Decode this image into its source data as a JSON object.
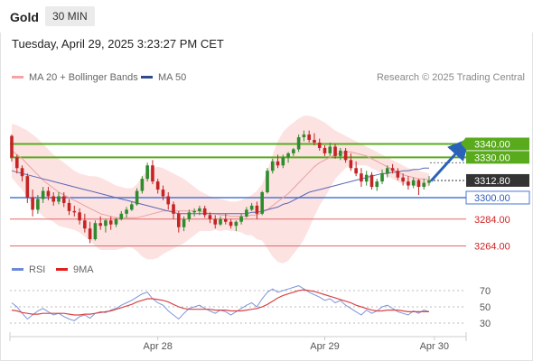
{
  "header": {
    "symbol": "Gold",
    "timeframe": "30 MIN",
    "timestamp": "Tuesday, April 29, 2025 3:23:27 PM CET"
  },
  "legend": {
    "bollinger_label": "MA 20 + Bollinger Bands",
    "ma50_label": "MA 50",
    "attribution": "Research © 2025 Trading Central",
    "rsi_label": "RSI",
    "rsi_ma_label": "9MA"
  },
  "colors": {
    "bullish": "#2e8b2e",
    "bearish": "#c42424",
    "bollinger_fill": "#fde2e2",
    "ma20": "#e8a0a0",
    "ma50": "#5a67b5",
    "key_level": "#5aaa1e",
    "support": "#4a78d6",
    "lower_support": "#e06a6a",
    "rsi": "#7d95d8",
    "rsi_ma": "#d94545",
    "arrow": "#2a62b8"
  },
  "chart_data": [
    {
      "type": "candlestick",
      "title": "Gold 30 MIN",
      "x_ticks": [
        "Apr 28",
        "Apr 29",
        "Apr 30"
      ],
      "ylim": [
        3245,
        3360
      ],
      "levels": [
        {
          "value": 3340.0,
          "label": "3340.00",
          "kind": "resistance"
        },
        {
          "value": 3330.0,
          "label": "3330.00",
          "kind": "resistance"
        },
        {
          "value": 3312.8,
          "label": "3312.80",
          "kind": "last_price"
        },
        {
          "value": 3300.0,
          "label": "3300.00",
          "kind": "pivot"
        },
        {
          "value": 3284.0,
          "label": "3284.00",
          "kind": "support"
        },
        {
          "value": 3264.0,
          "label": "3264.00",
          "kind": "support"
        }
      ],
      "forecast": {
        "from": 3311,
        "to": 3341
      },
      "ohlc": [
        [
          3346,
          3347,
          3327,
          3330
        ],
        [
          3330,
          3332,
          3318,
          3322
        ],
        [
          3322,
          3324,
          3312,
          3316
        ],
        [
          3316,
          3318,
          3296,
          3300
        ],
        [
          3300,
          3306,
          3286,
          3291
        ],
        [
          3291,
          3302,
          3288,
          3299
        ],
        [
          3299,
          3308,
          3296,
          3305
        ],
        [
          3305,
          3308,
          3298,
          3301
        ],
        [
          3301,
          3304,
          3294,
          3297
        ],
        [
          3297,
          3304,
          3295,
          3301
        ],
        [
          3301,
          3304,
          3293,
          3296
        ],
        [
          3296,
          3299,
          3287,
          3290
        ],
        [
          3290,
          3294,
          3286,
          3289
        ],
        [
          3289,
          3292,
          3280,
          3283
        ],
        [
          3283,
          3288,
          3274,
          3277
        ],
        [
          3277,
          3282,
          3266,
          3269
        ],
        [
          3269,
          3283,
          3268,
          3281
        ],
        [
          3281,
          3286,
          3276,
          3279
        ],
        [
          3279,
          3284,
          3274,
          3283
        ],
        [
          3283,
          3286,
          3276,
          3280
        ],
        [
          3280,
          3285,
          3278,
          3284
        ],
        [
          3284,
          3290,
          3283,
          3288
        ],
        [
          3288,
          3293,
          3285,
          3291
        ],
        [
          3291,
          3297,
          3290,
          3295
        ],
        [
          3295,
          3307,
          3294,
          3305
        ],
        [
          3305,
          3316,
          3303,
          3314
        ],
        [
          3314,
          3326,
          3312,
          3324
        ],
        [
          3324,
          3328,
          3310,
          3312
        ],
        [
          3312,
          3314,
          3303,
          3306
        ],
        [
          3306,
          3309,
          3298,
          3301
        ],
        [
          3301,
          3304,
          3291,
          3295
        ],
        [
          3295,
          3297,
          3284,
          3288
        ],
        [
          3288,
          3290,
          3274,
          3278
        ],
        [
          3278,
          3286,
          3275,
          3284
        ],
        [
          3284,
          3291,
          3282,
          3289
        ],
        [
          3289,
          3292,
          3286,
          3290
        ],
        [
          3290,
          3294,
          3287,
          3292
        ],
        [
          3292,
          3294,
          3285,
          3287
        ],
        [
          3287,
          3289,
          3281,
          3284
        ],
        [
          3284,
          3287,
          3277,
          3280
        ],
        [
          3280,
          3286,
          3279,
          3284
        ],
        [
          3284,
          3288,
          3280,
          3282
        ],
        [
          3282,
          3284,
          3277,
          3279
        ],
        [
          3279,
          3283,
          3275,
          3282
        ],
        [
          3282,
          3288,
          3280,
          3286
        ],
        [
          3286,
          3293,
          3285,
          3291
        ],
        [
          3291,
          3296,
          3290,
          3294
        ],
        [
          3294,
          3297,
          3284,
          3288
        ],
        [
          3288,
          3305,
          3287,
          3304
        ],
        [
          3304,
          3322,
          3303,
          3320
        ],
        [
          3320,
          3329,
          3318,
          3327
        ],
        [
          3327,
          3332,
          3322,
          3324
        ],
        [
          3324,
          3332,
          3322,
          3330
        ],
        [
          3330,
          3334,
          3326,
          3333
        ],
        [
          3333,
          3337,
          3331,
          3336
        ],
        [
          3336,
          3347,
          3334,
          3345
        ],
        [
          3345,
          3350,
          3342,
          3347
        ],
        [
          3347,
          3350,
          3341,
          3343
        ],
        [
          3343,
          3348,
          3339,
          3341
        ],
        [
          3341,
          3344,
          3335,
          3337
        ],
        [
          3337,
          3339,
          3331,
          3333
        ],
        [
          3333,
          3341,
          3331,
          3338
        ],
        [
          3338,
          3340,
          3329,
          3331
        ],
        [
          3331,
          3337,
          3328,
          3335
        ],
        [
          3335,
          3337,
          3326,
          3328
        ],
        [
          3328,
          3333,
          3320,
          3322
        ],
        [
          3322,
          3327,
          3316,
          3318
        ],
        [
          3318,
          3322,
          3308,
          3312
        ],
        [
          3312,
          3320,
          3309,
          3317
        ],
        [
          3317,
          3319,
          3306,
          3308
        ],
        [
          3308,
          3314,
          3305,
          3312
        ],
        [
          3312,
          3321,
          3310,
          3318
        ],
        [
          3318,
          3324,
          3315,
          3322
        ],
        [
          3322,
          3325,
          3318,
          3320
        ],
        [
          3320,
          3322,
          3313,
          3315
        ],
        [
          3315,
          3318,
          3309,
          3312
        ],
        [
          3312,
          3316,
          3306,
          3309
        ],
        [
          3309,
          3315,
          3307,
          3313
        ],
        [
          3313,
          3314,
          3302,
          3308
        ],
        [
          3308,
          3314,
          3306,
          3311
        ],
        [
          3311,
          3316,
          3309,
          3312.8
        ]
      ],
      "ma20": [
        3335,
        3332,
        3329,
        3325,
        3321,
        3317,
        3313,
        3310,
        3307,
        3304,
        3302,
        3300,
        3298,
        3296,
        3294,
        3292,
        3290,
        3288,
        3287,
        3286,
        3285,
        3285,
        3285,
        3285,
        3285,
        3286,
        3287,
        3288,
        3289,
        3290,
        3290,
        3290,
        3290,
        3290,
        3290,
        3290,
        3290,
        3289,
        3288,
        3288,
        3287,
        3287,
        3286,
        3286,
        3286,
        3286,
        3287,
        3287,
        3289,
        3291,
        3294,
        3297,
        3300,
        3303,
        3307,
        3311,
        3315,
        3319,
        3323,
        3326,
        3328,
        3330,
        3332,
        3333,
        3334,
        3334,
        3333,
        3332,
        3331,
        3329,
        3327,
        3325,
        3323,
        3321,
        3319,
        3317,
        3316,
        3315,
        3314,
        3314,
        3313
      ],
      "bollinger_upper": [
        3355,
        3354,
        3352,
        3350,
        3347,
        3344,
        3340,
        3336,
        3332,
        3329,
        3326,
        3323,
        3320,
        3318,
        3317,
        3316,
        3316,
        3315,
        3313,
        3311,
        3309,
        3308,
        3307,
        3307,
        3310,
        3316,
        3320,
        3322,
        3323,
        3322,
        3320,
        3318,
        3316,
        3314,
        3311,
        3308,
        3305,
        3303,
        3301,
        3300,
        3299,
        3298,
        3297,
        3297,
        3298,
        3300,
        3302,
        3305,
        3310,
        3320,
        3332,
        3342,
        3349,
        3353,
        3356,
        3359,
        3361,
        3361,
        3360,
        3358,
        3356,
        3353,
        3350,
        3348,
        3346,
        3344,
        3342,
        3340,
        3338,
        3336,
        3334,
        3332,
        3330,
        3328,
        3326,
        3324,
        3322,
        3321,
        3320,
        3319,
        3318
      ],
      "bollinger_lower": [
        3315,
        3310,
        3306,
        3300,
        3295,
        3290,
        3286,
        3284,
        3282,
        3279,
        3278,
        3277,
        3276,
        3274,
        3271,
        3268,
        3264,
        3261,
        3261,
        3261,
        3261,
        3262,
        3263,
        3263,
        3260,
        3256,
        3254,
        3254,
        3255,
        3258,
        3260,
        3262,
        3264,
        3266,
        3269,
        3272,
        3275,
        3275,
        3275,
        3276,
        3275,
        3276,
        3275,
        3275,
        3274,
        3272,
        3272,
        3269,
        3268,
        3262,
        3256,
        3252,
        3251,
        3253,
        3258,
        3263,
        3269,
        3277,
        3286,
        3294,
        3300,
        3307,
        3314,
        3318,
        3322,
        3324,
        3324,
        3324,
        3324,
        3322,
        3320,
        3318,
        3316,
        3314,
        3312,
        3310,
        3310,
        3309,
        3308,
        3309,
        3308
      ],
      "ma50": [
        3320,
        3319,
        3318,
        3317,
        3316,
        3315,
        3314,
        3313,
        3312,
        3311,
        3310,
        3309,
        3308,
        3307,
        3306,
        3305,
        3304,
        3303,
        3302,
        3301,
        3300,
        3299,
        3298,
        3297,
        3296,
        3295,
        3294,
        3293,
        3292,
        3291,
        3290,
        3289,
        3288,
        3288,
        3288,
        3288,
        3288,
        3288,
        3288,
        3288,
        3288,
        3288,
        3288,
        3288,
        3288,
        3288,
        3289,
        3289,
        3290,
        3291,
        3292,
        3293,
        3295,
        3296,
        3298,
        3300,
        3302,
        3304,
        3305,
        3306,
        3307,
        3308,
        3309,
        3310,
        3311,
        3312,
        3313,
        3314,
        3315,
        3316,
        3317,
        3318,
        3318,
        3319,
        3319,
        3320,
        3320,
        3321,
        3321,
        3322,
        3322
      ]
    },
    {
      "type": "line",
      "series_labels": [
        "RSI",
        "9MA"
      ],
      "y_ticks": [
        30,
        50,
        70
      ],
      "ylim": [
        20,
        80
      ],
      "rsi": [
        55,
        50,
        42,
        35,
        40,
        45,
        48,
        44,
        40,
        42,
        38,
        35,
        33,
        38,
        40,
        36,
        42,
        44,
        43,
        46,
        48,
        52,
        55,
        58,
        62,
        66,
        68,
        60,
        55,
        52,
        45,
        40,
        35,
        42,
        48,
        50,
        52,
        48,
        45,
        42,
        46,
        44,
        40,
        44,
        48,
        52,
        55,
        50,
        60,
        68,
        72,
        68,
        70,
        72,
        74,
        76,
        72,
        68,
        65,
        62,
        58,
        60,
        55,
        58,
        52,
        48,
        44,
        40,
        46,
        42,
        45,
        50,
        52,
        48,
        44,
        42,
        40,
        45,
        42,
        46,
        44
      ],
      "rsi_ma": [
        46,
        45,
        43,
        42,
        41,
        41,
        42,
        42,
        42,
        42,
        42,
        41,
        40,
        40,
        41,
        41,
        42,
        43,
        44,
        45,
        47,
        49,
        51,
        53,
        56,
        58,
        60,
        60,
        59,
        58,
        56,
        53,
        50,
        48,
        47,
        47,
        47,
        47,
        47,
        46,
        46,
        46,
        45,
        45,
        45,
        46,
        47,
        48,
        50,
        53,
        57,
        61,
        64,
        66,
        68,
        70,
        71,
        70,
        69,
        67,
        65,
        63,
        61,
        59,
        57,
        55,
        52,
        50,
        48,
        46,
        45,
        45,
        46,
        46,
        46,
        45,
        44,
        44,
        44,
        44,
        44
      ]
    }
  ]
}
